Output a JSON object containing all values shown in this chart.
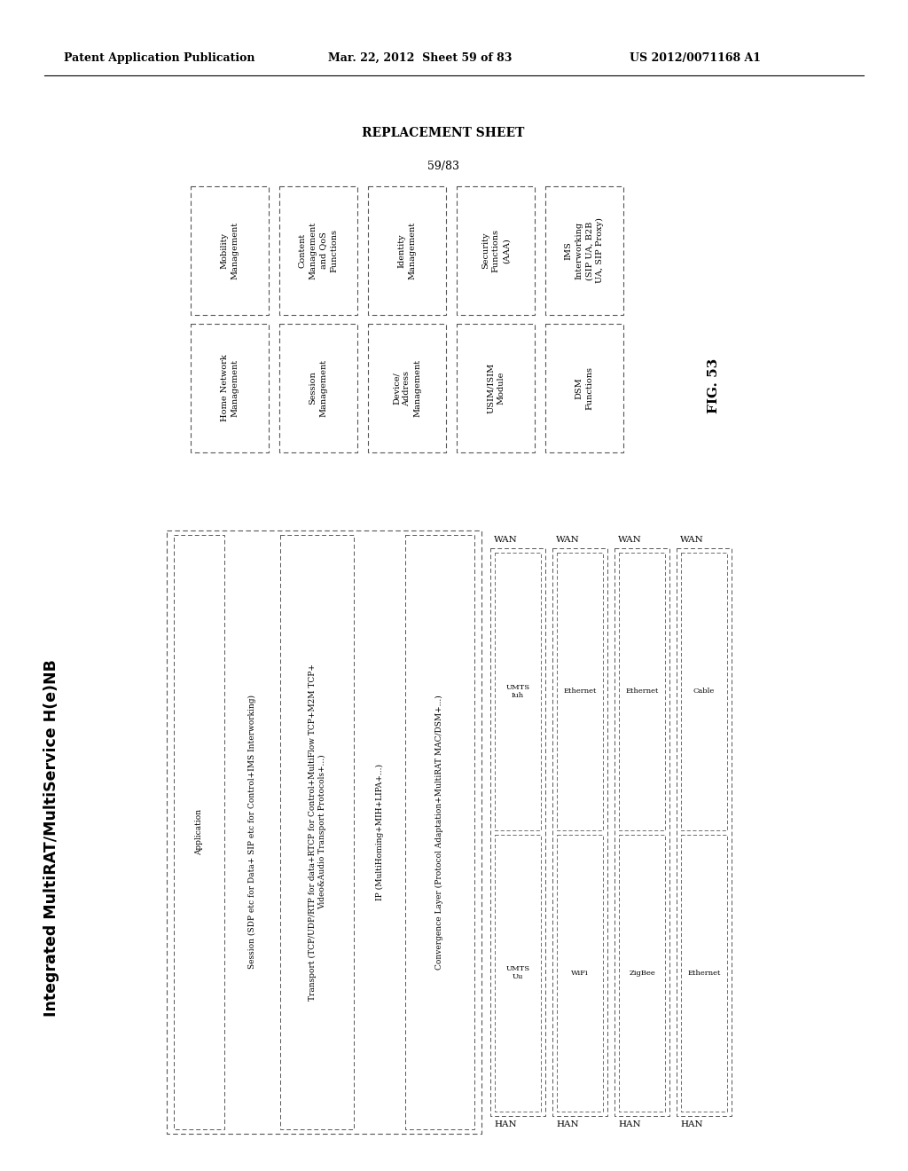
{
  "bg_color": "#ffffff",
  "header_left": "Patent Application Publication",
  "header_mid": "Mar. 22, 2012  Sheet 59 of 83",
  "header_right": "US 2012/0071168 A1",
  "replacement_sheet": "REPLACEMENT SHEET",
  "page_num": "59/83",
  "fig_label": "FIG. 53",
  "upper_row1": [
    "Mobility\nManagement",
    "Content\nManagement\nand QoS\nFunctions",
    "Identity\nManagement",
    "Security\nFunctions\n(AAA)",
    "IMS\nInterworking\n(SIP UA, B2B\nUA, SIP Proxy)"
  ],
  "upper_row2": [
    "Home Network\nManagement",
    "Session\nManagement",
    "Device/\nAddress\nManagement",
    "USIM/ISIM\nModule",
    "DSM\nFunctions"
  ],
  "lower_title": "Integrated MultiRAT/MultiService H(e)NB",
  "layer_cols": [
    {
      "label": "Application",
      "has_box": true
    },
    {
      "label": "Session (SDP etc for Data+ SIP etc for Control+IMS Interworking)",
      "has_box": false
    },
    {
      "label": "Transport (TCP/UDP/RTP for data+RTCP for Control+MultiFlow TCP+M2M TCP+\nVideo&Audio Transport Protocols+...)",
      "has_box": true
    },
    {
      "label": "IP (MultiHoming+MIH+LIPA+...)",
      "has_box": false
    },
    {
      "label": "Convergence Layer (Protocol Adaptation+MultiRAT MAC/DSM+...)",
      "has_box": true
    }
  ],
  "wan_han_cols": [
    {
      "wan_label": "WAN",
      "han_label": "HAN",
      "top_box": "UMTS\nIuh",
      "bottom_box": "UMTS\nUu"
    },
    {
      "wan_label": "WAN",
      "han_label": "HAN",
      "top_box": "Ethernet",
      "bottom_box": "WiFi"
    },
    {
      "wan_label": "WAN",
      "han_label": "HAN",
      "top_box": "Ethernet",
      "bottom_box": "ZigBee"
    },
    {
      "wan_label": "WAN",
      "han_label": "HAN",
      "top_box": "Cable",
      "bottom_box": "Ethernet"
    }
  ]
}
